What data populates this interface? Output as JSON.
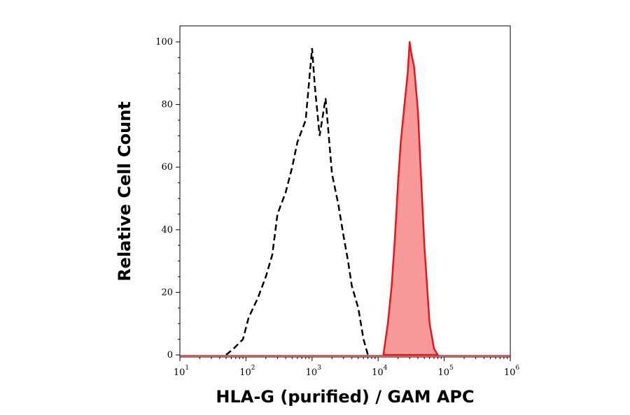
{
  "chart_data": {
    "type": "area",
    "title": "",
    "xlabel": "HLA-G (purified) / GAM APC",
    "ylabel": "Relative Cell Count",
    "x_scale": "log",
    "xlim": [
      10,
      1000000
    ],
    "ylim": [
      0,
      100
    ],
    "x_ticks": [
      {
        "base": "10",
        "exp": "1",
        "value": 10
      },
      {
        "base": "10",
        "exp": "2",
        "value": 100
      },
      {
        "base": "10",
        "exp": "3",
        "value": 1000
      },
      {
        "base": "10",
        "exp": "4",
        "value": 10000
      },
      {
        "base": "10",
        "exp": "5",
        "value": 100000
      },
      {
        "base": "10",
        "exp": "6",
        "value": 1000000
      }
    ],
    "y_ticks": [
      "0",
      "20",
      "40",
      "60",
      "80",
      "100"
    ],
    "grid": false,
    "legend": "none",
    "series": [
      {
        "style": "dashed-outline",
        "color": "#000000",
        "x": [
          50,
          65,
          90,
          110,
          150,
          200,
          250,
          300,
          400,
          500,
          600,
          800,
          1000,
          1100,
          1300,
          1600,
          2000,
          2500,
          3000,
          3500,
          4000,
          5000,
          6000,
          7000
        ],
        "y": [
          0,
          2,
          5,
          12,
          18,
          25,
          32,
          45,
          52,
          60,
          68,
          75,
          98,
          86,
          70,
          82,
          58,
          48,
          38,
          30,
          22,
          15,
          5,
          0
        ]
      },
      {
        "style": "filled",
        "color": "#e8161b",
        "fill": "#f99a9a",
        "x": [
          12000,
          14000,
          16000,
          18000,
          20000,
          22000,
          25000,
          28000,
          30000,
          32000,
          35000,
          40000,
          45000,
          50000,
          55000,
          60000,
          70000,
          80000
        ],
        "y": [
          0,
          10,
          22,
          38,
          55,
          68,
          80,
          90,
          100,
          96,
          92,
          78,
          55,
          35,
          22,
          10,
          2,
          0
        ]
      }
    ]
  }
}
